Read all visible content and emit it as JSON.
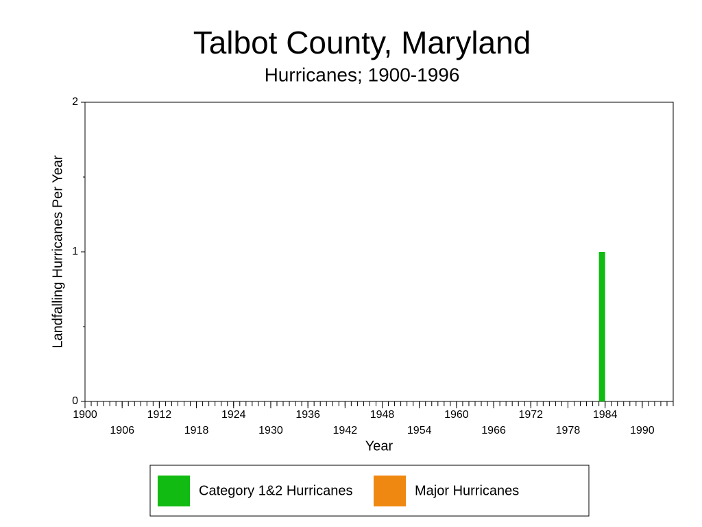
{
  "chart_data": {
    "type": "bar",
    "title": "Talbot County, Maryland",
    "subtitle": "Hurricanes;  1900-1996",
    "x_label": "Year",
    "y_label": "Landfalling Hurricanes Per Year",
    "x": [
      1983
    ],
    "series": [
      {
        "name": "Category 1&2 Hurricanes",
        "color": "#11bb11",
        "values": [
          1
        ]
      },
      {
        "name": "Major Hurricanes",
        "color": "#ee8811",
        "values": [
          0
        ]
      }
    ],
    "xlim": [
      1900,
      1995
    ],
    "xticks": [
      1900,
      1906,
      1912,
      1918,
      1924,
      1930,
      1936,
      1942,
      1948,
      1954,
      1960,
      1966,
      1972,
      1978,
      1984,
      1990
    ],
    "ylim": [
      0,
      2
    ],
    "yticks": [
      0,
      1,
      2
    ],
    "grid": false
  }
}
